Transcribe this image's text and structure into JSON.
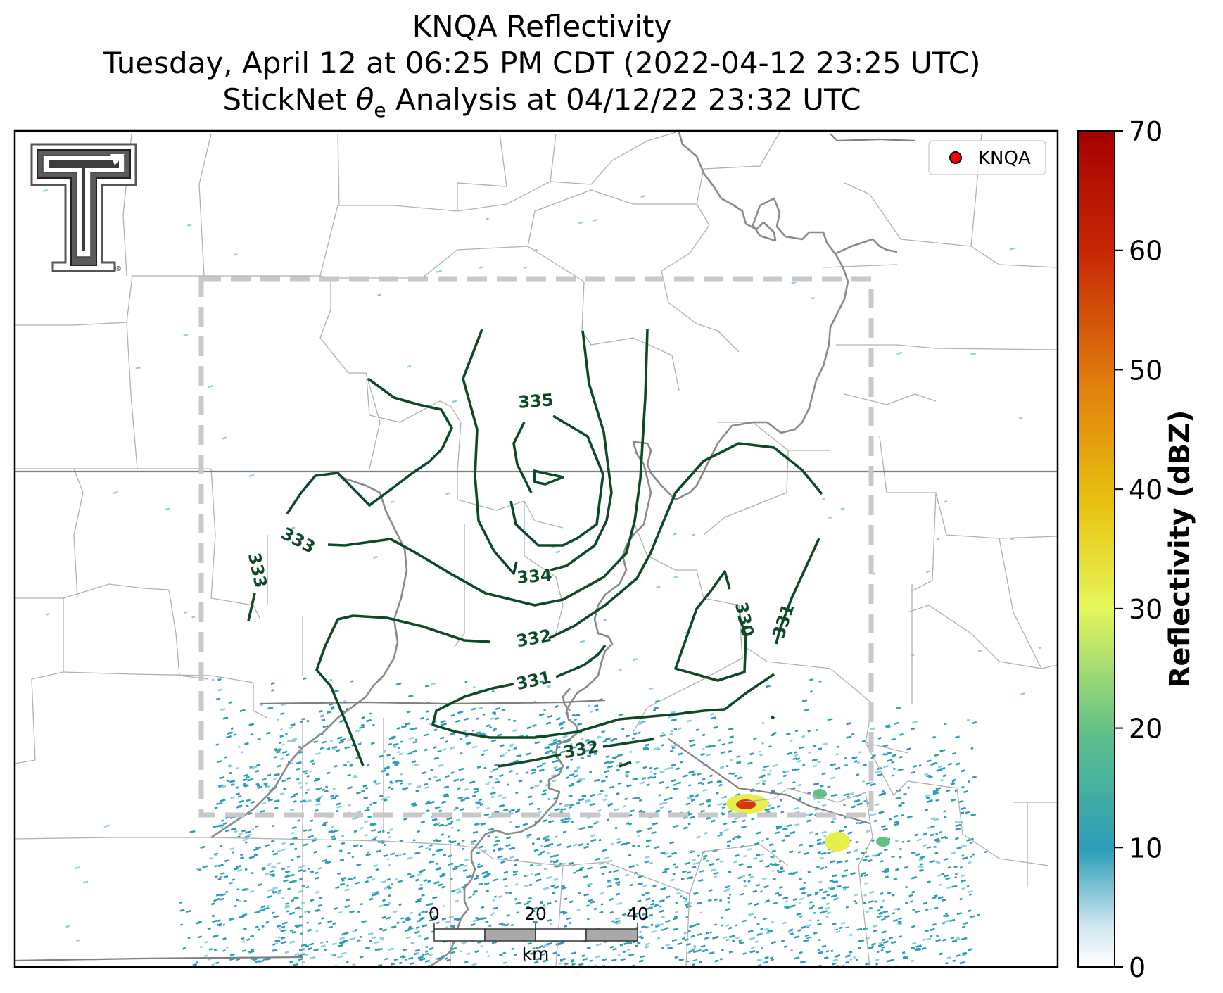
{
  "header": {
    "title_line1": "KNQA Reflectivity",
    "title_line2": "Tuesday, April 12 at 06:25 PM CDT (2022-04-12 23:25 UTC)",
    "title_line3_prefix": "StickNet ",
    "title_line3_symbol": "θ",
    "title_line3_subscript": "e",
    "title_line3_suffix": " Analysis at 04/12/22 23:32 UTC"
  },
  "legend": {
    "marker_color": "#ff0000",
    "label": "KNQA"
  },
  "logo": {
    "text": "T",
    "registered_mark": "®"
  },
  "contours": {
    "color": "#0c4a25",
    "labels": [
      "335",
      "334",
      "333",
      "333",
      "332",
      "331",
      "332",
      "330",
      "331"
    ]
  },
  "analysis_domain": {
    "border_color": "#c8c8c8",
    "style": "dashed"
  },
  "scale_bar": {
    "ticks": [
      "0",
      "20",
      "40"
    ],
    "unit": "km"
  },
  "colorbar": {
    "label": "Reflectivity (dBZ)",
    "ticks": [
      "0",
      "10",
      "20",
      "30",
      "40",
      "50",
      "60",
      "70"
    ],
    "range": [
      0,
      70
    ],
    "colors": [
      "#ffffff",
      "#cfe6f0",
      "#2b9db8",
      "#5fc08a",
      "#e6f65a",
      "#e8c412",
      "#e07d0c",
      "#c82a06",
      "#a50000"
    ]
  },
  "map_layers": {
    "state_border_color": "#7f7f7f",
    "county_border_color": "#b0b0b0",
    "river_color": "#8a8a8a",
    "reflectivity_light": "#8fcfe2",
    "reflectivity_main": "#2b9db8",
    "reflectivity_core_yellow": "#e6ef4a",
    "reflectivity_core_red": "#d43808"
  }
}
